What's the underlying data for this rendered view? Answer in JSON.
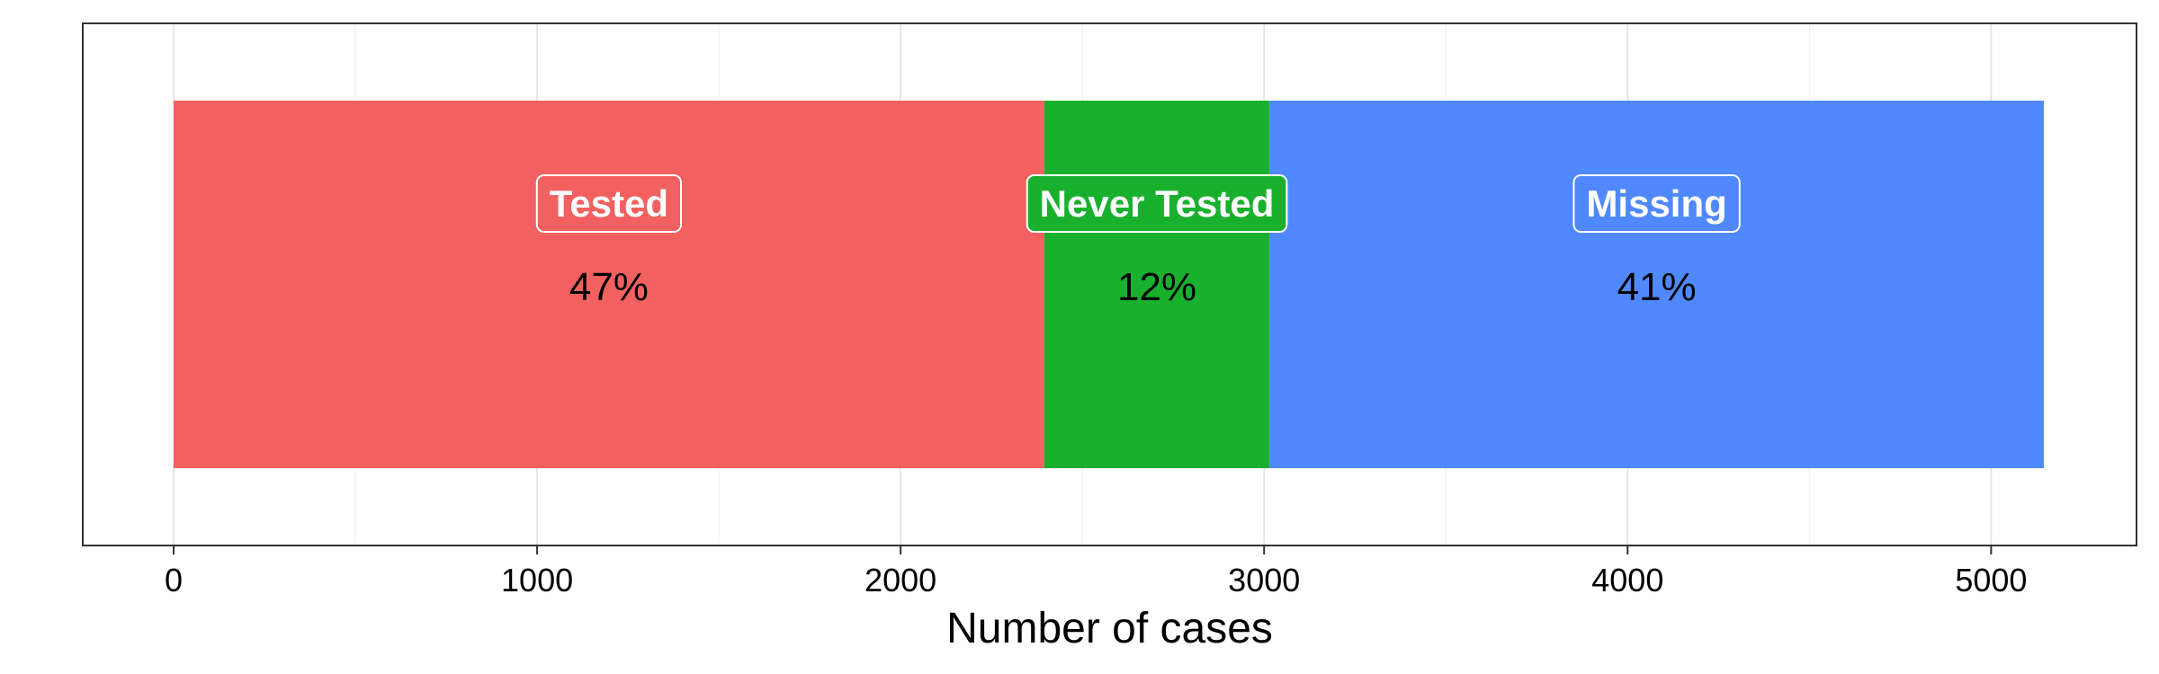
{
  "chart_data": {
    "type": "bar",
    "orientation": "horizontal",
    "stacked": true,
    "xlabel": "Number of cases",
    "ylabel": "",
    "title": "",
    "xlim": [
      -250,
      5400
    ],
    "xticks": [
      0,
      1000,
      2000,
      3000,
      4000,
      5000
    ],
    "grid": true,
    "legend": "none",
    "series": [
      {
        "name": "Tested",
        "value": 2395,
        "percent_label": "47%",
        "color": "#F26160"
      },
      {
        "name": "Never Tested",
        "value": 620,
        "percent_label": "12%",
        "color": "#19B02E"
      },
      {
        "name": "Missing",
        "value": 2130,
        "percent_label": "41%",
        "color": "#5088FF"
      }
    ]
  }
}
